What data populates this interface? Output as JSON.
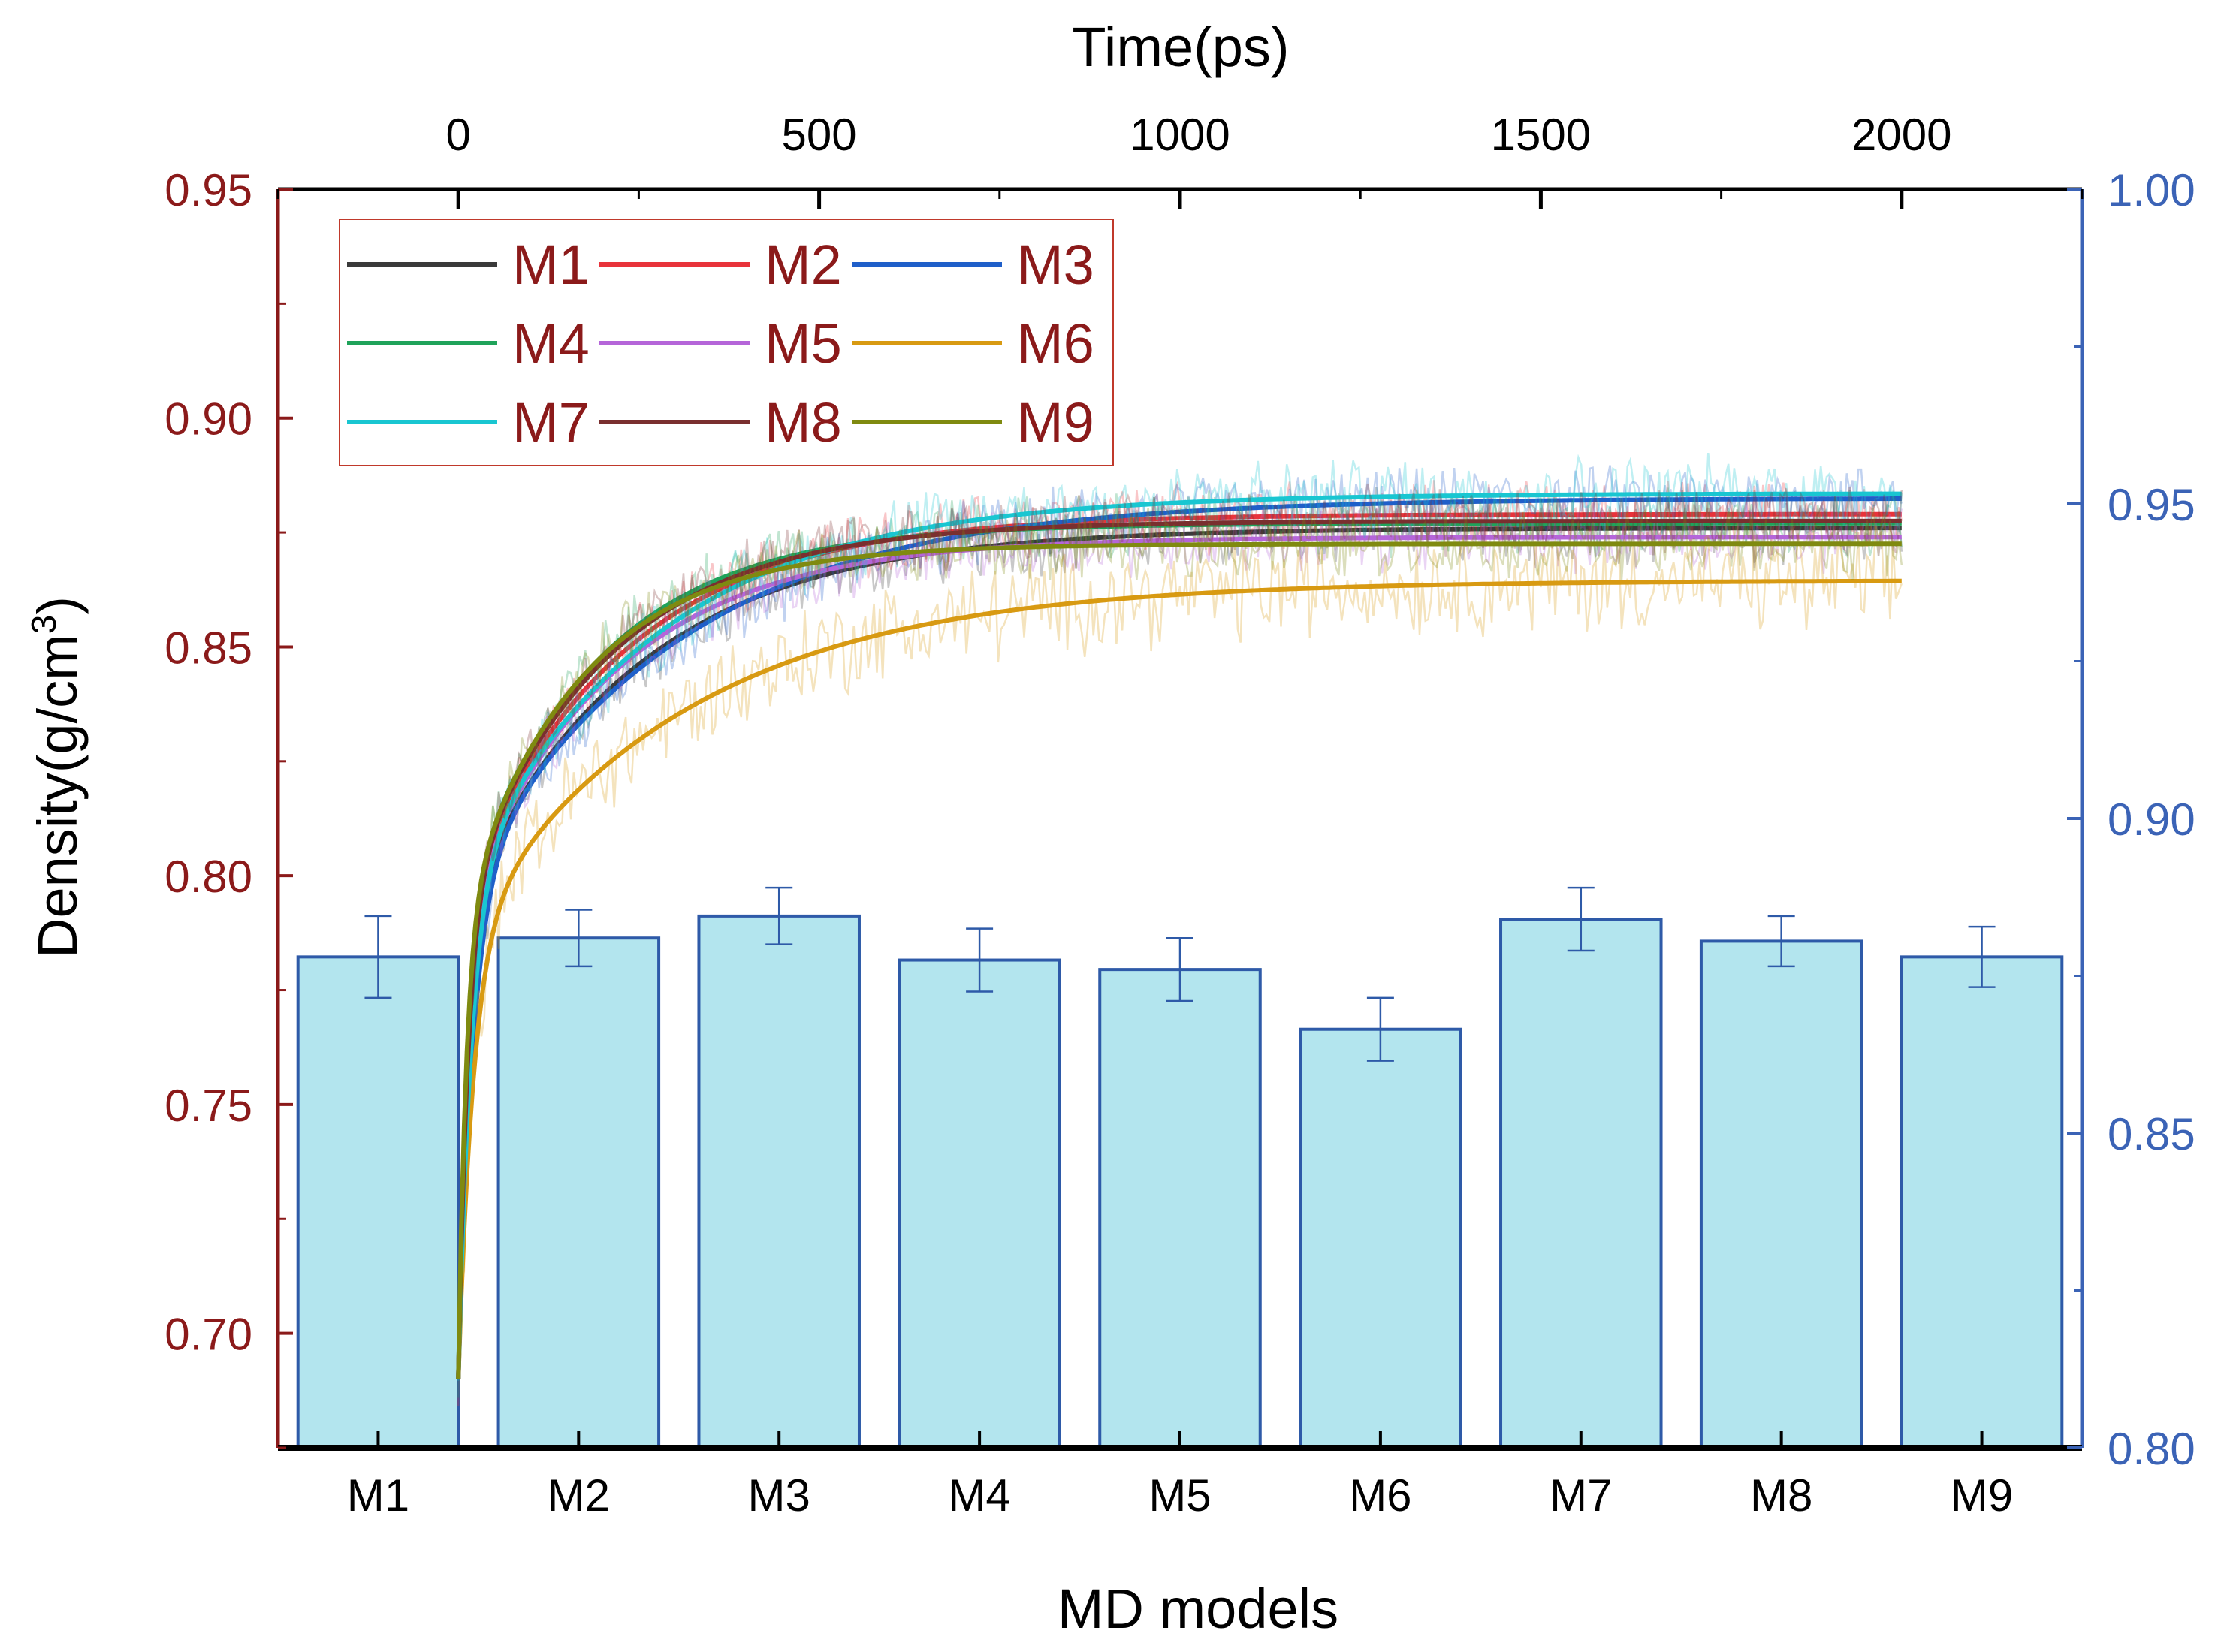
{
  "chart_data": {
    "type": "bar",
    "xlabel": "MD models",
    "ylabel": "Density(g/cm",
    "ylabel_sup": "3",
    "ylabel_close": ")",
    "top_xlabel": "Time(ps)",
    "left_axis": {
      "ylim": [
        0.675,
        0.95
      ],
      "ticks": [
        "0.70",
        "0.75",
        "0.80",
        "0.85",
        "0.90",
        "0.95"
      ],
      "color": "#8b1a1a"
    },
    "right_axis": {
      "ylim": [
        0.8,
        1.0
      ],
      "ticks": [
        "0.80",
        "0.85",
        "0.90",
        "0.95",
        "1.00"
      ],
      "color": "#3b63b6"
    },
    "top_axis": {
      "xlim": [
        -250,
        2250
      ],
      "ticks": [
        "0",
        "500",
        "1000",
        "1500",
        "2000"
      ]
    },
    "bar_color": "#b3e5ee",
    "bar_edge": "#2e5aa8",
    "categories": [
      "M1",
      "M2",
      "M3",
      "M4",
      "M5",
      "M6",
      "M7",
      "M8",
      "M9"
    ],
    "values": [
      0.878,
      0.881,
      0.8845,
      0.8775,
      0.876,
      0.8665,
      0.884,
      0.8805,
      0.878
    ],
    "errors": [
      0.0065,
      0.0045,
      0.0045,
      0.005,
      0.005,
      0.005,
      0.005,
      0.004,
      0.0048
    ],
    "series": [
      {
        "name": "M1",
        "color": "#3a3a3a",
        "plateau": 0.876,
        "k": 1.1,
        "noise": 0.006
      },
      {
        "name": "M2",
        "color": "#e8333b",
        "plateau": 0.879,
        "k": 1.0,
        "noise": 0.006
      },
      {
        "name": "M3",
        "color": "#1f5fc9",
        "plateau": 0.8825,
        "k": 1.35,
        "noise": 0.006
      },
      {
        "name": "M4",
        "color": "#1fa35a",
        "plateau": 0.877,
        "k": 0.85,
        "noise": 0.006
      },
      {
        "name": "M5",
        "color": "#b565d9",
        "plateau": 0.874,
        "k": 0.95,
        "noise": 0.006
      },
      {
        "name": "M6",
        "color": "#d89a12",
        "plateau": 0.8645,
        "k": 1.4,
        "noise": 0.009
      },
      {
        "name": "M7",
        "color": "#19c6d1",
        "plateau": 0.8835,
        "k": 1.2,
        "noise": 0.007
      },
      {
        "name": "M8",
        "color": "#7a2f2f",
        "plateau": 0.8775,
        "k": 0.9,
        "noise": 0.006
      },
      {
        "name": "M9",
        "color": "#7f8a10",
        "plateau": 0.8725,
        "k": 0.75,
        "noise": 0.006
      }
    ],
    "time_range": [
      0,
      2000
    ],
    "legend_position": "top-left"
  }
}
